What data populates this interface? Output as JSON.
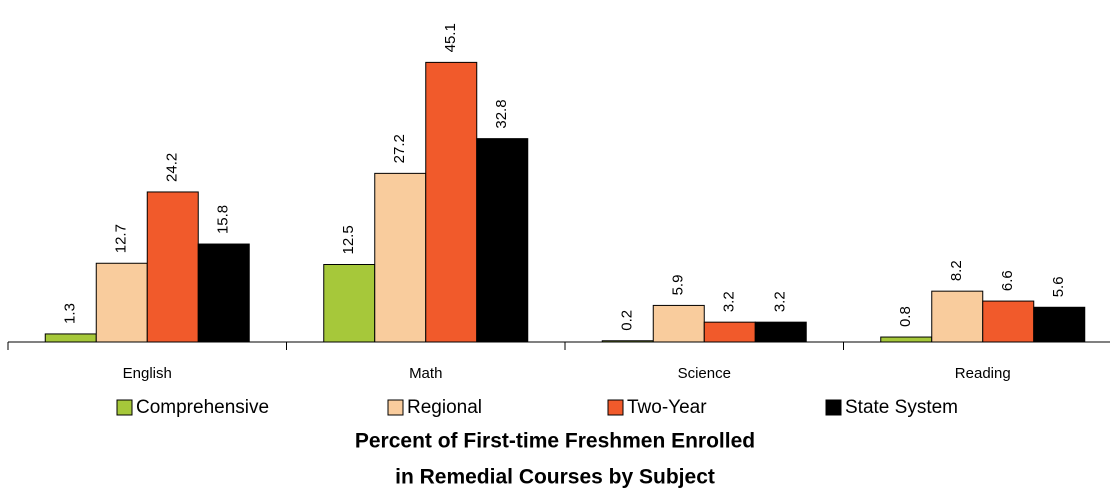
{
  "chart_data": {
    "type": "bar",
    "title": [
      "Percent of First-time Freshmen Enrolled",
      "in Remedial Courses by Subject"
    ],
    "categories": [
      "English",
      "Math",
      "Science",
      "Reading"
    ],
    "series": [
      {
        "name": "Comprehensive",
        "color": "#a6c83a",
        "values": [
          1.3,
          12.5,
          0.2,
          0.8
        ]
      },
      {
        "name": "Regional",
        "color": "#f9cc9d",
        "values": [
          12.7,
          27.2,
          5.9,
          8.2
        ]
      },
      {
        "name": "Two-Year",
        "color": "#f15a2b",
        "values": [
          24.2,
          45.1,
          3.2,
          6.6
        ]
      },
      {
        "name": "State System",
        "color": "#000000",
        "values": [
          15.8,
          32.8,
          3.2,
          5.6
        ]
      }
    ],
    "ylim": [
      0,
      50
    ]
  }
}
